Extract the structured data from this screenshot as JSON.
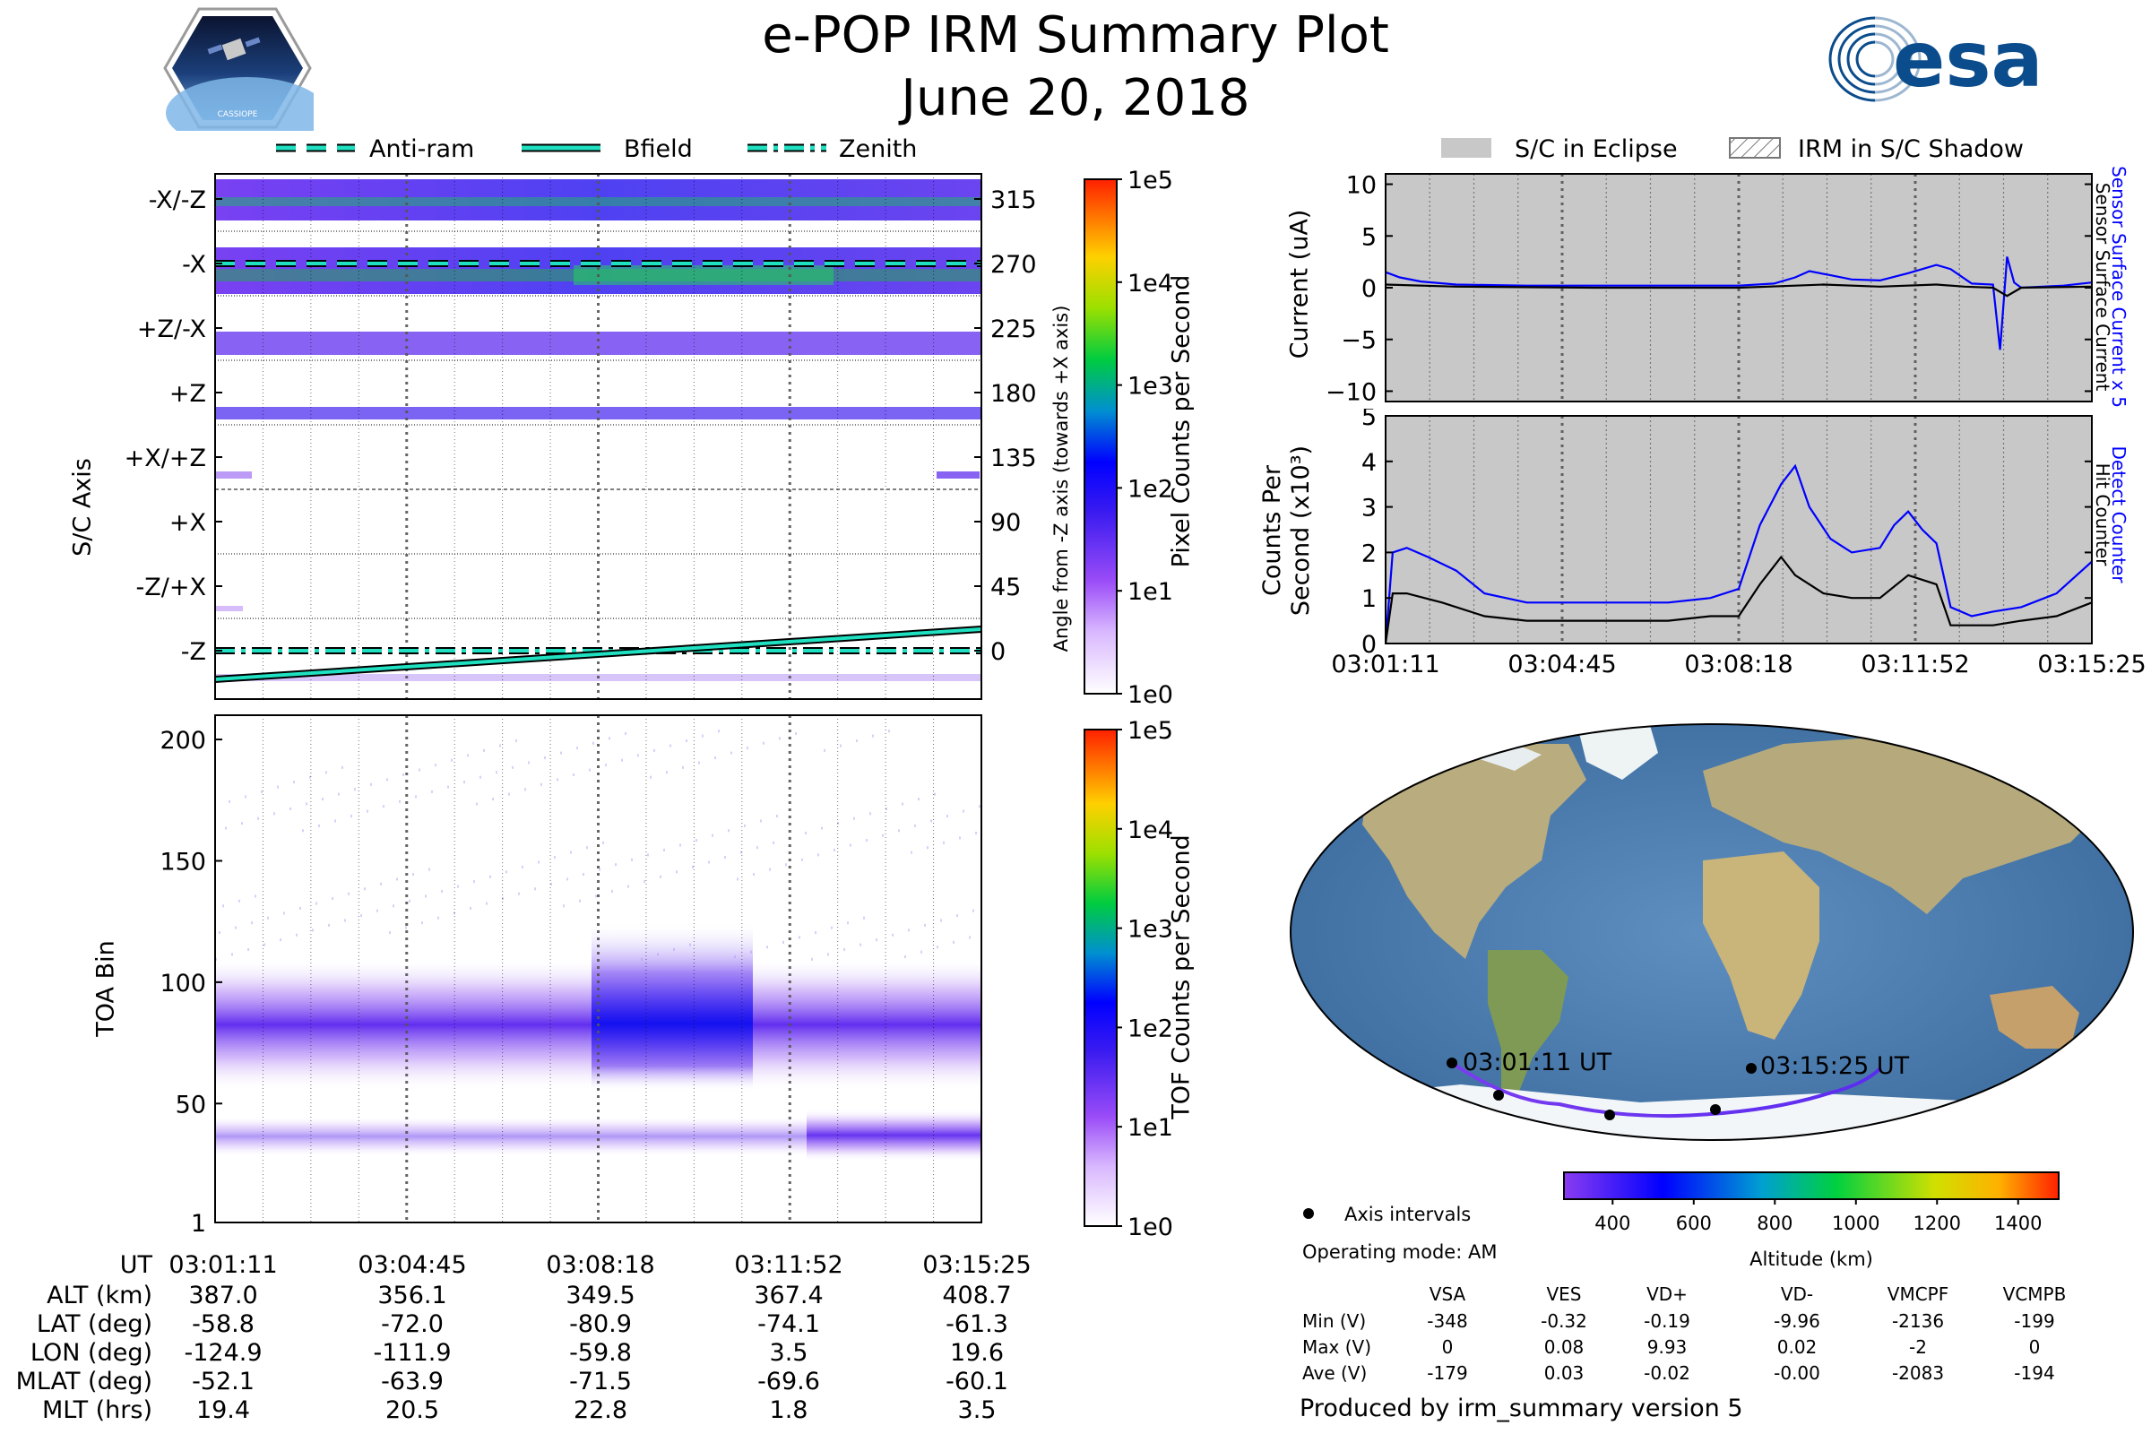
{
  "header": {
    "title": "e-POP IRM Summary Plot",
    "date": "June 20, 2018",
    "mission_logo_text": "CASSIOPE",
    "agency_logo_text": "esa"
  },
  "legend_top_left": [
    "Anti-ram",
    "Bfield",
    "Zenith"
  ],
  "legend_top_right": [
    "S/C in Eclipse",
    "IRM in S/C Shadow"
  ],
  "chart_data": [
    {
      "id": "sc_axis_panel",
      "type": "heatmap",
      "ylabel_left": "S/C Axis",
      "ylabel_right": "Angle from -Z axis (towards +X axis)",
      "y_left_ticks": [
        "-X/-Z",
        "-X",
        "+Z/-X",
        "+Z",
        "+X/+Z",
        "+X",
        "-Z/+X",
        "-Z"
      ],
      "y_right_ticks": [
        "315",
        "270",
        "225",
        "180",
        "135",
        "90",
        "45",
        "0"
      ],
      "colorbar": {
        "label": "Pixel Counts per Second",
        "ticks": [
          "1e0",
          "1e1",
          "1e2",
          "1e3",
          "1e4",
          "1e5"
        ]
      },
      "lines": {
        "Anti-ram": {
          "angle_start": 270,
          "angle_end": 270
        },
        "Zenith": {
          "angle_start": 0,
          "angle_end": 0
        },
        "Bfield": {
          "angle_start": -20,
          "angle_end": 15
        }
      }
    },
    {
      "id": "toa_panel",
      "type": "heatmap",
      "ylabel": "TOA Bin",
      "y_ticks": [
        "200",
        "150",
        "100",
        "50",
        "1"
      ],
      "ylim": [
        1,
        210
      ],
      "colorbar": {
        "label": "TOF Counts per Second",
        "ticks": [
          "1e0",
          "1e1",
          "1e2",
          "1e3",
          "1e4",
          "1e5"
        ]
      }
    },
    {
      "id": "current_panel",
      "type": "line",
      "ylabel": "Current (uA)",
      "ylim": [
        -11,
        11
      ],
      "y_ticks": [
        "10",
        "5",
        "0",
        "−5",
        "−10"
      ],
      "series": [
        {
          "name": "Sensor Surface Current x 5",
          "color": "#0000ff",
          "x": [
            0,
            0.02,
            0.05,
            0.1,
            0.2,
            0.3,
            0.4,
            0.5,
            0.55,
            0.58,
            0.6,
            0.63,
            0.66,
            0.7,
            0.74,
            0.78,
            0.8,
            0.83,
            0.86,
            0.87,
            0.88,
            0.89,
            0.9,
            0.93,
            0.96,
            1.0
          ],
          "y": [
            1.5,
            1.0,
            0.6,
            0.3,
            0.2,
            0.2,
            0.2,
            0.2,
            0.4,
            1.0,
            1.6,
            1.2,
            0.8,
            0.7,
            1.4,
            2.2,
            1.8,
            0.4,
            0.3,
            -6.0,
            3.0,
            0.5,
            0.0,
            0.1,
            0.2,
            0.5
          ]
        },
        {
          "name": "Sensor Surface Current",
          "color": "#000000",
          "x": [
            0,
            0.1,
            0.3,
            0.5,
            0.58,
            0.62,
            0.7,
            0.78,
            0.82,
            0.86,
            0.88,
            0.9,
            1.0
          ],
          "y": [
            0.3,
            0.1,
            0.0,
            0.0,
            0.2,
            0.3,
            0.1,
            0.3,
            0.1,
            0.0,
            -0.8,
            0.0,
            0.1
          ]
        }
      ]
    },
    {
      "id": "counts_panel",
      "type": "line",
      "ylabel": "Counts Per Second (x10³)",
      "ylim": [
        0,
        5
      ],
      "y_ticks": [
        "5",
        "4",
        "3",
        "2",
        "1",
        "0"
      ],
      "x_ticks": [
        "03:01:11",
        "03:04:45",
        "03:08:18",
        "03:11:52",
        "03:15:25"
      ],
      "series": [
        {
          "name": "Detect Counter",
          "color": "#0000ff",
          "x": [
            0,
            0.01,
            0.03,
            0.06,
            0.1,
            0.14,
            0.2,
            0.3,
            0.4,
            0.46,
            0.5,
            0.53,
            0.56,
            0.58,
            0.6,
            0.63,
            0.66,
            0.7,
            0.72,
            0.74,
            0.76,
            0.78,
            0.8,
            0.83,
            0.86,
            0.9,
            0.95,
            1.0
          ],
          "y": [
            0.0,
            2.0,
            2.1,
            1.9,
            1.6,
            1.1,
            0.9,
            0.9,
            0.9,
            1.0,
            1.2,
            2.6,
            3.5,
            3.9,
            3.0,
            2.3,
            2.0,
            2.1,
            2.6,
            2.9,
            2.5,
            2.2,
            0.8,
            0.6,
            0.7,
            0.8,
            1.1,
            1.8
          ]
        },
        {
          "name": "Hit Counter",
          "color": "#000000",
          "x": [
            0,
            0.01,
            0.03,
            0.08,
            0.14,
            0.2,
            0.3,
            0.4,
            0.46,
            0.5,
            0.53,
            0.56,
            0.58,
            0.62,
            0.66,
            0.7,
            0.74,
            0.78,
            0.8,
            0.86,
            0.9,
            0.95,
            1.0
          ],
          "y": [
            0.0,
            1.1,
            1.1,
            0.9,
            0.6,
            0.5,
            0.5,
            0.5,
            0.6,
            0.6,
            1.3,
            1.9,
            1.5,
            1.1,
            1.0,
            1.0,
            1.5,
            1.3,
            0.4,
            0.4,
            0.5,
            0.6,
            0.9
          ]
        }
      ]
    }
  ],
  "shared_x_ticks": [
    "03:01:11",
    "03:04:45",
    "03:08:18",
    "03:11:52",
    "03:15:25"
  ],
  "eph_table": {
    "ut_label": "UT",
    "rows": [
      {
        "label": "ALT (km)",
        "values": [
          "387.0",
          "356.1",
          "349.5",
          "367.4",
          "408.7"
        ]
      },
      {
        "label": "LAT (deg)",
        "values": [
          "-58.8",
          "-72.0",
          "-80.9",
          "-74.1",
          "-61.3"
        ]
      },
      {
        "label": "LON (deg)",
        "values": [
          "-124.9",
          "-111.9",
          "-59.8",
          "3.5",
          "19.6"
        ]
      },
      {
        "label": "MLAT (deg)",
        "values": [
          "-52.1",
          "-63.9",
          "-71.5",
          "-69.6",
          "-60.1"
        ]
      },
      {
        "label": "MLT (hrs)",
        "values": [
          "19.4",
          "20.5",
          "22.8",
          "1.8",
          "3.5"
        ]
      }
    ]
  },
  "map": {
    "start_label": "03:01:11 UT",
    "end_label": "03:15:25 UT",
    "altitude_label": "Altitude (km)",
    "altitude_ticks": [
      "400",
      "600",
      "800",
      "1000",
      "1200",
      "1400"
    ],
    "axis_intervals_label": "Axis intervals"
  },
  "operating_mode": "Operating mode: AM",
  "voltage_table": {
    "headers": [
      "VSA",
      "VES",
      "VD+",
      "VD-",
      "VMCPF",
      "VCMPB"
    ],
    "rows": [
      {
        "label": "Min (V)",
        "values": [
          "-348",
          "-0.32",
          "-0.19",
          "-9.96",
          "-2136",
          "-199"
        ]
      },
      {
        "label": "Max (V)",
        "values": [
          "0",
          "0.08",
          "9.93",
          "0.02",
          "-2",
          "0"
        ]
      },
      {
        "label": "Ave (V)",
        "values": [
          "-179",
          "0.03",
          "-0.02",
          "-0.00",
          "-2083",
          "-194"
        ]
      }
    ]
  },
  "footer": "Produced by irm_summary version 5"
}
